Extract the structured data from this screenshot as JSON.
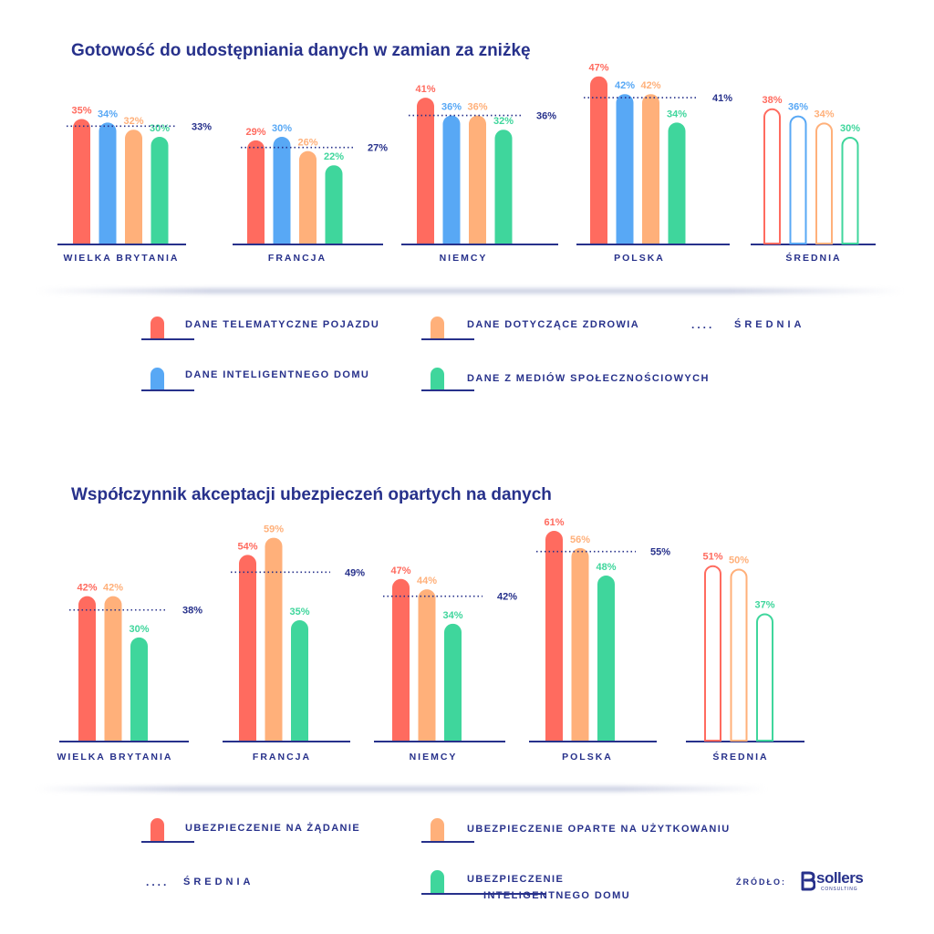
{
  "colors": {
    "navy": "#27318b",
    "red": "#ff6b5f",
    "blue": "#58a8f5",
    "orange": "#ffb07a",
    "green": "#3fd69c"
  },
  "chart_data": [
    {
      "type": "bar",
      "title": "Gotowość do udostępniania danych w zamian za zniżkę",
      "categories": [
        "WIELKA BRYTANIA",
        "FRANCJA",
        "NIEMCY",
        "POLSKA",
        "ŚREDNIA"
      ],
      "series": [
        {
          "name": "DANE TELEMATYCZNE POJAZDU",
          "color": "#ff6b5f",
          "values": [
            35,
            29,
            41,
            47,
            38
          ]
        },
        {
          "name": "DANE INTELIGENTNEGO DOMU",
          "color": "#58a8f5",
          "values": [
            34,
            30,
            36,
            42,
            36
          ]
        },
        {
          "name": "DANE DOTYCZĄCE ZDROWIA",
          "color": "#ffb07a",
          "values": [
            32,
            26,
            36,
            42,
            34
          ]
        },
        {
          "name": "DANE Z MEDIÓW SPOŁECZNOŚCIOWYCH",
          "color": "#3fd69c",
          "values": [
            30,
            22,
            32,
            34,
            30
          ]
        }
      ],
      "averages": [
        33,
        27,
        36,
        41
      ],
      "average_label": "ŚREDNIA",
      "outlined_categories": [
        "ŚREDNIA"
      ],
      "value_suffix": "%",
      "ylim": [
        0,
        50
      ],
      "grid": false,
      "legend_position": "bottom"
    },
    {
      "type": "bar",
      "title": "Współczynnik akceptacji ubezpieczeń opartych na danych",
      "categories": [
        "WIELKA BRYTANIA",
        "FRANCJA",
        "NIEMCY",
        "POLSKA",
        "ŚREDNIA"
      ],
      "series": [
        {
          "name": "UBEZPIECZENIE NA ŻĄDANIE",
          "color": "#ff6b5f",
          "values": [
            42,
            54,
            47,
            61,
            51
          ]
        },
        {
          "name": "UBEZPIECZENIE OPARTE NA UŻYTKOWANIU",
          "color": "#ffb07a",
          "values": [
            42,
            59,
            44,
            56,
            50
          ]
        },
        {
          "name": "UBEZPIECZENIE INTELIGENTNEGO DOMU",
          "color": "#3fd69c",
          "values": [
            30,
            35,
            34,
            48,
            37
          ]
        }
      ],
      "averages": [
        38,
        49,
        42,
        55
      ],
      "average_label": "ŚREDNIA",
      "outlined_categories": [
        "ŚREDNIA"
      ],
      "value_suffix": "%",
      "ylim": [
        0,
        65
      ],
      "grid": false,
      "legend_position": "bottom"
    }
  ],
  "legend1": {
    "telematics": "DANE TELEMATYCZNE POJAZDU",
    "health": "DANE DOTYCZĄCE ZDROWIA",
    "average": "ŚREDNIA",
    "smarthome": "DANE INTELIGENTNEGO DOMU",
    "social": "DANE Z MEDIÓW SPOŁECZNOŚCIOWYCH",
    "dots": "...."
  },
  "legend2": {
    "ondemand": "UBEZPIECZENIE NA ŻĄDANIE",
    "usage": "UBEZPIECZENIE OPARTE NA UŻYTKOWANIU",
    "average": "ŚREDNIA",
    "smarthome_line1": "UBEZPIECZENIE",
    "smarthome_line2": "INTELIGENTNEGO DOMU",
    "dots": "...."
  },
  "footer": {
    "source_label": "ŹRÓDŁO:",
    "logo_text": "sollers",
    "logo_sub": "CONSULTING"
  }
}
